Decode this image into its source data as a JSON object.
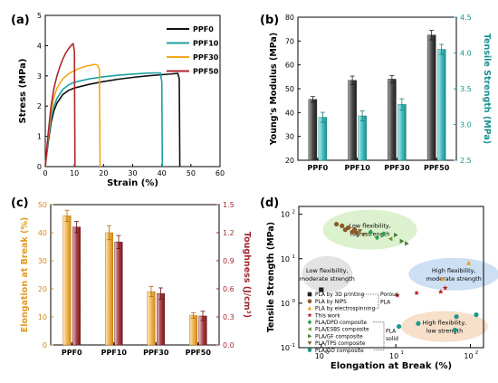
{
  "chart_data": [
    {
      "panel": "(a)",
      "type": "line",
      "xlabel": "Strain (%)",
      "ylabel": "Stress (MPa)",
      "xlim": [
        0,
        60
      ],
      "ylim": [
        0,
        5
      ],
      "xticks": [
        0,
        10,
        20,
        30,
        40,
        50,
        60
      ],
      "yticks": [
        0,
        1,
        2,
        3,
        4,
        5
      ],
      "legend": "top-right",
      "grid": false,
      "series": [
        {
          "name": "PPF0",
          "color": "#111111",
          "x": [
            0,
            1,
            2,
            3,
            4,
            6,
            8,
            10,
            15,
            20,
            25,
            30,
            35,
            40,
            44,
            45.5,
            46,
            46.2
          ],
          "y": [
            0,
            0.8,
            1.45,
            1.85,
            2.1,
            2.38,
            2.52,
            2.6,
            2.72,
            2.81,
            2.89,
            2.95,
            3.0,
            3.04,
            3.07,
            3.08,
            2.9,
            0
          ]
        },
        {
          "name": "PPF10",
          "color": "#1aa1a1",
          "x": [
            0,
            1,
            2,
            3,
            4,
            6,
            8,
            10,
            15,
            20,
            25,
            30,
            35,
            38,
            39.5,
            40,
            40.2
          ],
          "y": [
            0,
            0.9,
            1.6,
            2.0,
            2.25,
            2.55,
            2.7,
            2.79,
            2.9,
            2.97,
            3.02,
            3.06,
            3.09,
            3.1,
            3.1,
            2.8,
            0
          ]
        },
        {
          "name": "PPF30",
          "color": "#f2a81d",
          "x": [
            0,
            1,
            2,
            3,
            4,
            6,
            8,
            10,
            12,
            14,
            16,
            17,
            18,
            18.6,
            18.8
          ],
          "y": [
            0,
            1.0,
            1.8,
            2.3,
            2.6,
            2.9,
            3.07,
            3.18,
            3.26,
            3.32,
            3.36,
            3.38,
            3.35,
            3.2,
            0
          ]
        },
        {
          "name": "PPF50",
          "color": "#b2262b",
          "x": [
            0,
            1,
            2,
            3,
            4,
            5,
            6,
            7,
            8,
            9,
            9.6,
            10,
            10.2
          ],
          "y": [
            0,
            1.1,
            2.0,
            2.6,
            3.0,
            3.3,
            3.55,
            3.75,
            3.9,
            4.02,
            4.06,
            3.8,
            0
          ]
        }
      ]
    },
    {
      "panel": "(b)",
      "type": "bar",
      "categories": [
        "PPF0",
        "PPF10",
        "PPF30",
        "PPF50"
      ],
      "ylabel": "Young's Modulus (MPa)",
      "ylabel2": "Tensile Strength (MPa)",
      "ylim": [
        20,
        80
      ],
      "ylim2": [
        2.5,
        4.5
      ],
      "yticks": [
        20,
        30,
        40,
        50,
        60,
        70,
        80
      ],
      "yticks2": [
        "2.5",
        "3.0",
        "3.5",
        "4.0",
        "4.5"
      ],
      "series": [
        {
          "name": "",
          "axis": "left",
          "color": "#666666",
          "values": [
            45.5,
            53.5,
            54,
            72.5
          ],
          "errors": [
            1.2,
            1.8,
            1.5,
            2.0
          ]
        },
        {
          "name": "",
          "axis": "right",
          "color": "#3cbcbc",
          "values": [
            3.1,
            3.12,
            3.28,
            4.05
          ],
          "errors": [
            0.07,
            0.07,
            0.08,
            0.07
          ]
        }
      ]
    },
    {
      "panel": "(c)",
      "type": "bar",
      "categories": [
        "PPF0",
        "PPF10",
        "PPF30",
        "PPF50"
      ],
      "ylabel": "Elongation at Break (%)",
      "ylabel2": "Toughness (J/cm³)",
      "ylim": [
        0,
        50
      ],
      "ylim2": [
        0,
        1.5
      ],
      "yticks": [
        0,
        10,
        20,
        30,
        40,
        50
      ],
      "yticks2": [
        "0.0",
        "0.3",
        "0.6",
        "0.9",
        "1.2",
        "1.5"
      ],
      "series": [
        {
          "name": "",
          "axis": "left",
          "color": "#f0a830",
          "values": [
            46,
            40,
            19,
            10.5
          ],
          "errors": [
            2.0,
            2.5,
            1.8,
            1.0
          ]
        },
        {
          "name": "",
          "axis": "right",
          "color": "#9e2a2e",
          "values": [
            1.26,
            1.1,
            0.55,
            0.31
          ],
          "errors": [
            0.06,
            0.07,
            0.06,
            0.05
          ]
        }
      ]
    },
    {
      "panel": "(d)",
      "type": "scatter",
      "xlabel": "Elongation at Break (%)",
      "ylabel": "Tensile Strength (MPa)",
      "xscale": "log",
      "yscale": "log",
      "xlim": [
        0.5,
        150
      ],
      "ylim": [
        0.1,
        150
      ],
      "xticks": [
        {
          "v": 1,
          "t": "10",
          "e": "0"
        },
        {
          "v": 10,
          "t": "10",
          "e": "1"
        },
        {
          "v": 100,
          "t": "10",
          "e": "2"
        }
      ],
      "yticks": [
        {
          "v": 0.1,
          "t": "10",
          "e": "-1"
        },
        {
          "v": 1,
          "t": "10",
          "e": "0"
        },
        {
          "v": 10,
          "t": "10",
          "e": "1"
        },
        {
          "v": 100,
          "t": "10",
          "e": "2"
        }
      ],
      "legend": "bottom-left",
      "legend_items": [
        {
          "label": "PLA by 3D printing",
          "marker": "square",
          "color": "#222222"
        },
        {
          "label": "PLA by NIPS",
          "marker": "circle",
          "color": "#8a5a2a"
        },
        {
          "label": "PLA by electrospinning",
          "marker": "triangle",
          "color": "#e8a020"
        },
        {
          "label": "This work",
          "marker": "star",
          "color": "#b82020"
        },
        {
          "label": "PLA/DPD composite",
          "marker": "diamond",
          "color": "#2aa24a"
        },
        {
          "label": "PLA/ESBS composite",
          "marker": "tri-left",
          "color": "#6a9a2a"
        },
        {
          "label": "PLA/GF composite",
          "marker": "tri-right",
          "color": "#4a7a3a"
        },
        {
          "label": "PLA/TPS composite",
          "marker": "tri-down",
          "color": "#7a6a2a"
        },
        {
          "label": "PLA/GO composite",
          "marker": "circle",
          "color": "#1a9a8a"
        }
      ],
      "group_labels": [
        {
          "text": "Porous"
        },
        {
          "text": "PLA"
        },
        {
          "text": "PLA"
        },
        {
          "text": "solid"
        }
      ],
      "regions": [
        {
          "label": "Low flexibility, high strength",
          "fill": "#d8efc8",
          "cx": 4.5,
          "cy": 45
        },
        {
          "label": "Low flexibility, moderate strength",
          "fill": "#e0e0e0",
          "cx": 1.2,
          "cy": 4.5
        },
        {
          "label": "High flexibility, moderate strength",
          "fill": "#c6dcf2",
          "cx": 60,
          "cy": 4.5
        },
        {
          "label": "High flexibility, low strength",
          "fill": "#f6dcc4",
          "cx": 45,
          "cy": 0.3
        }
      ],
      "points": [
        {
          "marker": "square",
          "color": "#222222",
          "x": 1.0,
          "y": 2.0
        },
        {
          "marker": "circle",
          "color": "#8a5a2a",
          "x": 1.6,
          "y": 60
        },
        {
          "marker": "circle",
          "color": "#8a5a2a",
          "x": 1.9,
          "y": 55
        },
        {
          "marker": "circle",
          "color": "#8a5a2a",
          "x": 2.1,
          "y": 45
        },
        {
          "marker": "circle",
          "color": "#8a5a2a",
          "x": 2.3,
          "y": 50
        },
        {
          "marker": "circle",
          "color": "#8a5a2a",
          "x": 2.6,
          "y": 40
        },
        {
          "marker": "circle",
          "color": "#8a5a2a",
          "x": 2.8,
          "y": 45
        },
        {
          "marker": "circle",
          "color": "#8a5a2a",
          "x": 3.0,
          "y": 38
        },
        {
          "marker": "tri-down",
          "color": "#7a6a2a",
          "x": 3.3,
          "y": 42
        },
        {
          "marker": "tri-down",
          "color": "#7a6a2a",
          "x": 3.7,
          "y": 35
        },
        {
          "marker": "diamond",
          "color": "#2aa24a",
          "x": 4.6,
          "y": 40
        },
        {
          "marker": "diamond",
          "color": "#2aa24a",
          "x": 5.6,
          "y": 30
        },
        {
          "marker": "diamond",
          "color": "#2aa24a",
          "x": 6.8,
          "y": 36
        },
        {
          "marker": "tri-left",
          "color": "#6a9a2a",
          "x": 8.5,
          "y": 28
        },
        {
          "marker": "tri-right",
          "color": "#4a7a3a",
          "x": 10,
          "y": 34
        },
        {
          "marker": "tri-right",
          "color": "#4a7a3a",
          "x": 12,
          "y": 25
        },
        {
          "marker": "tri-right",
          "color": "#4a7a3a",
          "x": 14,
          "y": 22
        },
        {
          "marker": "star",
          "color": "#b82020",
          "x": 10.5,
          "y": 1.5
        },
        {
          "marker": "star",
          "color": "#b82020",
          "x": 19,
          "y": 1.7
        },
        {
          "marker": "star",
          "color": "#b82020",
          "x": 40,
          "y": 1.8
        },
        {
          "marker": "star",
          "color": "#b82020",
          "x": 46,
          "y": 2.2
        },
        {
          "marker": "triangle",
          "color": "#e8a020",
          "x": 42,
          "y": 3.5
        },
        {
          "marker": "triangle",
          "color": "#e8a020",
          "x": 95,
          "y": 8.0
        },
        {
          "marker": "circle",
          "color": "#1a9a8a",
          "x": 11,
          "y": 0.3
        },
        {
          "marker": "circle",
          "color": "#1a9a8a",
          "x": 20,
          "y": 0.35
        },
        {
          "marker": "circle",
          "color": "#1a9a8a",
          "x": 62,
          "y": 0.25
        },
        {
          "marker": "circle",
          "color": "#1a9a8a",
          "x": 65,
          "y": 0.5
        },
        {
          "marker": "circle",
          "color": "#1a9a8a",
          "x": 120,
          "y": 0.55
        }
      ]
    }
  ]
}
